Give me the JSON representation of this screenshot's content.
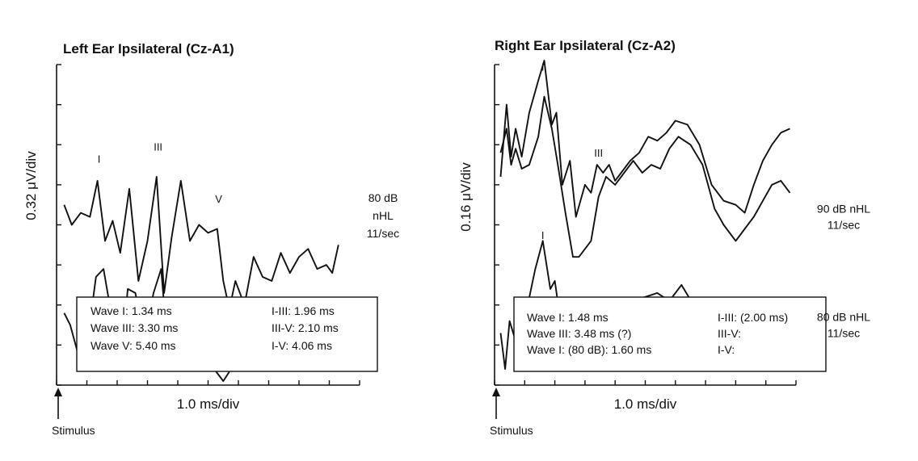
{
  "chart_data": [
    {
      "type": "line",
      "title": "Left Ear Ipsilateral (Cz-A1)",
      "ylabel": "0.32 μV/div",
      "xlabel": "1.0 ms/div",
      "stimulus_label": "Stimulus",
      "xlim": [
        0,
        10
      ],
      "ylim": [
        0,
        8
      ],
      "grid": false,
      "conditions": [
        "80 dB",
        "nHL",
        "11/sec"
      ],
      "wave_markers": [
        {
          "label": "I",
          "x": 1.4,
          "y": 5.55
        },
        {
          "label": "III",
          "x": 3.35,
          "y": 5.85
        },
        {
          "label": "V",
          "x": 5.35,
          "y": 4.55
        }
      ],
      "series": [
        {
          "x": [
            0.25,
            0.5,
            0.8,
            1.1,
            1.35,
            1.6,
            1.85,
            2.1,
            2.4,
            2.7,
            3.0,
            3.3,
            3.55,
            3.8,
            4.1,
            4.4,
            4.7,
            5.0,
            5.3,
            5.5,
            5.7,
            5.9,
            6.2,
            6.5,
            6.8,
            7.1,
            7.4,
            7.7,
            8.0,
            8.3,
            8.6,
            8.9,
            9.1,
            9.3
          ],
          "y": [
            4.5,
            4.0,
            4.3,
            4.2,
            5.1,
            3.6,
            4.1,
            3.3,
            4.9,
            2.6,
            3.6,
            5.2,
            2.3,
            3.7,
            5.1,
            3.6,
            4.0,
            3.8,
            3.9,
            2.6,
            1.9,
            2.6,
            2.0,
            3.2,
            2.7,
            2.6,
            3.3,
            2.8,
            3.2,
            3.4,
            2.9,
            3.0,
            2.8,
            3.5
          ]
        },
        {
          "x": [
            0.25,
            0.45,
            0.7,
            1.0,
            1.3,
            1.55,
            1.8,
            2.1,
            2.35,
            2.6,
            2.9,
            3.2,
            3.45,
            3.7,
            4.0,
            4.3,
            4.6,
            4.9,
            5.2,
            5.5,
            6.1,
            6.35,
            6.6,
            6.9,
            7.2,
            7.6,
            7.9,
            8.2,
            8.5,
            8.8,
            9.1,
            9.3
          ],
          "y": [
            1.8,
            1.5,
            0.8,
            1.0,
            2.7,
            2.9,
            1.8,
            0.4,
            2.4,
            2.3,
            1.2,
            2.3,
            2.9,
            0.6,
            1.7,
            1.6,
            1.9,
            2.1,
            0.4,
            0.1,
            0.8,
            0.6,
            0.4,
            0.5,
            0.5,
            1.2,
            0.9,
            1.0,
            0.7,
            0.8,
            0.8,
            0.9
          ]
        }
      ],
      "latencies_left": [
        {
          "label": "Wave I:",
          "value": "1.34 ms"
        },
        {
          "label": "Wave III:",
          "value": "3.30 ms"
        },
        {
          "label": "Wave V:",
          "value": "5.40 ms"
        }
      ],
      "latencies_right": [
        {
          "label": "I-III:",
          "value": "1.96 ms"
        },
        {
          "label": "III-V:",
          "value": "2.10 ms"
        },
        {
          "label": "I-V:",
          "value": "4.06 ms"
        }
      ]
    },
    {
      "type": "line",
      "title": "Right Ear Ipsilateral (Cz-A2)",
      "ylabel": "0.16 μV/div",
      "xlabel": "1.0 ms/div",
      "stimulus_label": "Stimulus",
      "xlim": [
        0,
        10
      ],
      "ylim": [
        0,
        8
      ],
      "grid": false,
      "conditions": [
        {
          "lines": [
            "90 dB nHL",
            "11/sec"
          ],
          "at": 4.3
        },
        {
          "lines": [
            "80 dB nHL",
            "11/sec"
          ],
          "at": 1.6
        }
      ],
      "wave_markers": [
        {
          "label": "I",
          "x": 1.6,
          "y": 7.85
        },
        {
          "label": "III",
          "x": 3.45,
          "y": 5.7
        },
        {
          "label": "I",
          "x": 1.6,
          "y": 3.65
        }
      ],
      "series": [
        {
          "x": [
            0.2,
            0.4,
            0.55,
            0.7,
            0.9,
            1.15,
            1.45,
            1.65,
            1.9,
            2.05,
            2.25,
            2.5,
            2.7,
            3.0,
            3.2,
            3.4,
            3.6,
            3.8,
            4.0,
            4.2,
            4.5,
            4.8,
            5.1,
            5.4,
            5.7,
            6.0,
            6.4,
            6.8,
            7.2,
            7.6,
            8.0,
            8.3,
            8.6,
            8.9,
            9.2,
            9.5,
            9.8
          ],
          "y": [
            5.2,
            7.0,
            5.7,
            6.4,
            5.7,
            6.8,
            7.6,
            8.1,
            6.5,
            6.8,
            5.0,
            5.6,
            4.2,
            5.0,
            4.8,
            5.5,
            5.3,
            5.5,
            5.1,
            5.3,
            5.6,
            5.8,
            6.2,
            6.1,
            6.3,
            6.6,
            6.5,
            6.0,
            5.0,
            4.6,
            4.5,
            4.3,
            5.0,
            5.6,
            6.0,
            6.3,
            6.4
          ]
        },
        {
          "x": [
            0.2,
            0.4,
            0.55,
            0.7,
            0.9,
            1.15,
            1.45,
            1.65,
            1.9,
            2.1,
            2.35,
            2.6,
            2.8,
            3.2,
            3.45,
            3.7,
            4.0,
            4.3,
            4.6,
            4.9,
            5.2,
            5.5,
            5.8,
            6.1,
            6.5,
            6.9,
            7.3,
            7.6,
            8.0,
            8.3,
            8.6,
            8.9,
            9.2,
            9.5,
            9.8
          ],
          "y": [
            5.8,
            6.4,
            5.5,
            5.9,
            5.4,
            5.5,
            6.2,
            7.2,
            6.4,
            5.5,
            4.3,
            3.2,
            3.2,
            3.6,
            4.7,
            5.2,
            5.0,
            5.3,
            5.6,
            5.3,
            5.5,
            5.4,
            5.9,
            6.2,
            6.0,
            5.5,
            4.4,
            4.0,
            3.6,
            3.9,
            4.2,
            4.6,
            5.0,
            5.1,
            4.8
          ]
        },
        {
          "x": [
            0.2,
            0.35,
            0.5,
            0.7,
            0.9,
            1.1,
            1.35,
            1.6,
            1.85,
            2.0,
            2.15,
            2.35,
            3.0,
            3.4,
            3.8,
            4.2,
            4.6,
            5.0,
            5.4,
            5.8,
            6.2,
            6.6,
            7.0,
            7.4,
            7.8,
            8.2,
            8.6,
            9.0,
            9.4,
            9.8
          ],
          "y": [
            1.3,
            0.4,
            1.6,
            1.1,
            1.7,
            2.0,
            2.9,
            3.6,
            2.4,
            2.6,
            1.8,
            0.8,
            0.9,
            1.3,
            1.0,
            1.4,
            2.1,
            2.2,
            2.3,
            2.1,
            2.5,
            2.0,
            1.8,
            1.5,
            1.0,
            0.7,
            1.2,
            1.1,
            1.5,
            1.4
          ]
        }
      ],
      "latencies_left": [
        {
          "label": "Wave I:",
          "value": "1.48 ms"
        },
        {
          "label": "Wave III:",
          "value": "3.48 ms (?)"
        },
        {
          "label": "Wave I: (80 dB):",
          "value": "1.60 ms"
        }
      ],
      "latencies_right": [
        {
          "label": "I-III:",
          "value": "(2.00 ms)"
        },
        {
          "label": "III-V:",
          "value": ""
        },
        {
          "label": "I-V:",
          "value": ""
        }
      ]
    }
  ]
}
